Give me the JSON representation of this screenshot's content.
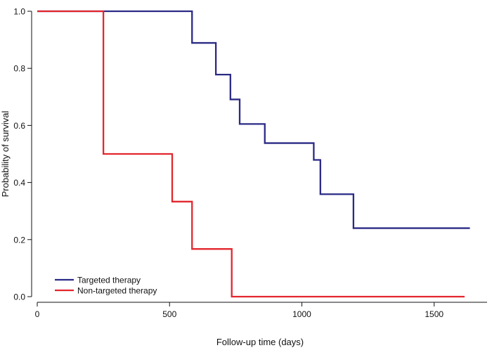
{
  "chart_data": {
    "type": "line",
    "subtype": "step",
    "title": "",
    "xlabel": "Follow-up time (days)",
    "ylabel": "Probability of survival",
    "xlim": [
      0,
      1700
    ],
    "ylim": [
      0.0,
      1.0
    ],
    "x_ticks": [
      0,
      500,
      1000,
      1500
    ],
    "x_tick_labels": [
      "0",
      "500",
      "1000",
      "1500"
    ],
    "y_ticks": [
      0.0,
      0.2,
      0.4,
      0.6,
      0.8,
      1.0
    ],
    "y_tick_labels": [
      "0.0",
      "0.2",
      "0.4",
      "0.6",
      "0.8",
      "1.0"
    ],
    "grid": false,
    "legend_position": "bottom-left",
    "series": [
      {
        "name": "Targeted therapy",
        "color": "#2b2a86",
        "points": [
          [
            0,
            1.0
          ],
          [
            585,
            1.0
          ],
          [
            585,
            0.889
          ],
          [
            675,
            0.889
          ],
          [
            675,
            0.778
          ],
          [
            730,
            0.778
          ],
          [
            730,
            0.691
          ],
          [
            765,
            0.691
          ],
          [
            765,
            0.605
          ],
          [
            860,
            0.605
          ],
          [
            860,
            0.538
          ],
          [
            1045,
            0.538
          ],
          [
            1045,
            0.479
          ],
          [
            1070,
            0.479
          ],
          [
            1070,
            0.359
          ],
          [
            1195,
            0.359
          ],
          [
            1195,
            0.24
          ],
          [
            1635,
            0.24
          ]
        ]
      },
      {
        "name": "Non-targeted therapy",
        "color": "#e3262e",
        "points": [
          [
            0,
            1.0
          ],
          [
            250,
            1.0
          ],
          [
            250,
            0.5
          ],
          [
            510,
            0.5
          ],
          [
            510,
            0.333
          ],
          [
            585,
            0.333
          ],
          [
            585,
            0.167
          ],
          [
            735,
            0.167
          ],
          [
            735,
            0.0
          ],
          [
            1615,
            0.0
          ]
        ]
      }
    ]
  }
}
